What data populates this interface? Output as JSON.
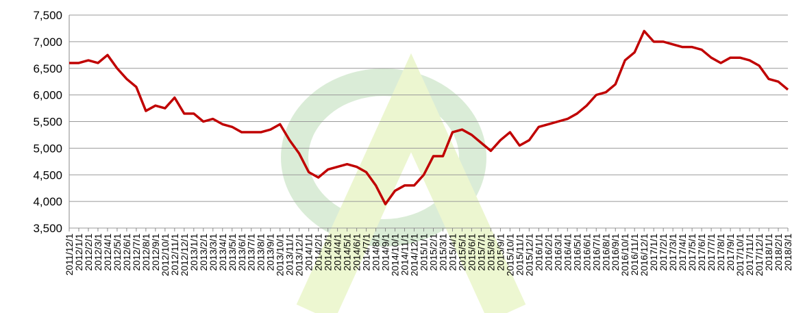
{
  "chart_data": {
    "type": "line",
    "categories": [
      "2011/12/1",
      "2012/1/1",
      "2012/2/1",
      "2012/3/1",
      "2012/4/1",
      "2012/5/1",
      "2012/6/1",
      "2012/7/1",
      "2012/8/1",
      "2012/9/1",
      "2012/10/1",
      "2012/11/1",
      "2012/12/1",
      "2013/1/1",
      "2013/2/1",
      "2013/3/1",
      "2013/4/1",
      "2013/5/1",
      "2013/6/1",
      "2013/7/1",
      "2013/8/1",
      "2013/9/1",
      "2013/10/1",
      "2013/11/1",
      "2013/12/1",
      "2014/1/1",
      "2014/2/1",
      "2014/3/1",
      "2014/4/1",
      "2014/5/1",
      "2014/6/1",
      "2014/7/1",
      "2014/8/1",
      "2014/9/1",
      "2014/10/1",
      "2014/11/1",
      "2014/12/1",
      "2015/1/1",
      "2015/2/1",
      "2015/3/1",
      "2015/4/1",
      "2015/5/1",
      "2015/6/1",
      "2015/7/1",
      "2015/8/1",
      "2015/9/1",
      "2015/10/1",
      "2015/11/1",
      "2015/12/1",
      "2016/1/1",
      "2016/2/1",
      "2016/3/1",
      "2016/4/1",
      "2016/5/1",
      "2016/6/1",
      "2016/7/1",
      "2016/8/1",
      "2016/9/1",
      "2016/10/1",
      "2016/11/1",
      "2016/12/1",
      "2017/1/1",
      "2017/2/1",
      "2017/3/1",
      "2017/4/1",
      "2017/5/1",
      "2017/6/1",
      "2017/7/1",
      "2017/8/1",
      "2017/9/1",
      "2017/10/1",
      "2017/11/1",
      "2017/12/1",
      "2018/1/1",
      "2018/2/1",
      "2018/3/1"
    ],
    "values": [
      6600,
      6600,
      6650,
      6600,
      6750,
      6500,
      6300,
      6150,
      5700,
      5800,
      5750,
      5950,
      5650,
      5650,
      5500,
      5550,
      5450,
      5400,
      5300,
      5300,
      5300,
      5350,
      5450,
      5150,
      4900,
      4550,
      4450,
      4600,
      4650,
      4700,
      4650,
      4550,
      4300,
      3950,
      4200,
      4300,
      4300,
      4500,
      4850,
      4850,
      5300,
      5350,
      5250,
      5100,
      4950,
      5150,
      5300,
      5050,
      5150,
      5400,
      5450,
      5500,
      5550,
      5650,
      5800,
      6000,
      6050,
      6200,
      6650,
      6800,
      7200,
      7000,
      7000,
      6950,
      6900,
      6900,
      6850,
      6700,
      6600,
      6700,
      6700,
      6650,
      6550,
      6300,
      6250,
      6100
    ],
    "color": "#c00000",
    "ylim": [
      3500,
      7500
    ],
    "yticks": [
      {
        "value": 3500,
        "label": "3,500"
      },
      {
        "value": 4000,
        "label": "4,000"
      },
      {
        "value": 4500,
        "label": "4,500"
      },
      {
        "value": 5000,
        "label": "5,000"
      },
      {
        "value": 5500,
        "label": "5,500"
      },
      {
        "value": 6000,
        "label": "6,000"
      },
      {
        "value": 6500,
        "label": "6,500"
      },
      {
        "value": 7000,
        "label": "7,000"
      },
      {
        "value": 7500,
        "label": "7,500"
      }
    ],
    "grid": true
  }
}
